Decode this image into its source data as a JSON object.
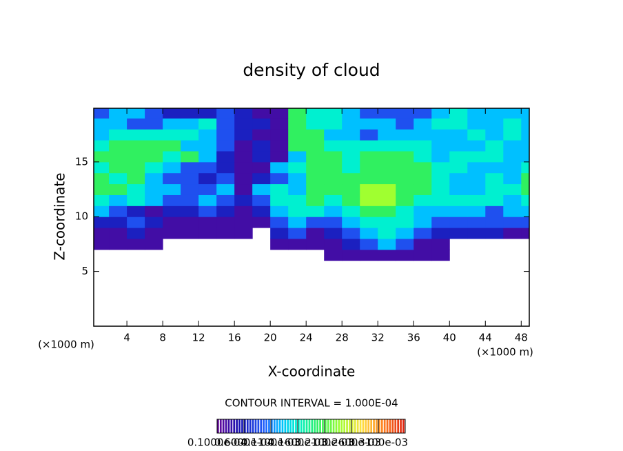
{
  "chart_data": {
    "type": "heatmap",
    "title": "density of cloud",
    "x_label": "X-coordinate",
    "y_label": "Z-coordinate",
    "x_unit": "(×1000 m)",
    "y_unit": "(×1000 m)",
    "annotation": "CONTOUR INTERVAL = 1.000E-04",
    "xlim": [
      0.3,
      48.9
    ],
    "ylim": [
      0,
      19.9
    ],
    "xticks": [
      4,
      8,
      12,
      16,
      20,
      24,
      28,
      32,
      36,
      40,
      44,
      48
    ],
    "yticks": [
      5,
      10,
      15
    ],
    "x": [
      1,
      3,
      5,
      7,
      9,
      11,
      13,
      15,
      17,
      19,
      21,
      23,
      25,
      27,
      29,
      31,
      33,
      35,
      37,
      39,
      41,
      43,
      45,
      47,
      49
    ],
    "z": [
      6.5,
      7.5,
      8.5,
      9.5,
      10.5,
      11.5,
      12.5,
      13.5,
      14.5,
      15.5,
      16.5,
      17.5,
      18.5,
      19.5
    ],
    "values": [
      [
        null,
        null,
        null,
        null,
        null,
        null,
        null,
        null,
        null,
        null,
        null,
        null,
        null,
        3e-05,
        3e-05,
        3e-05,
        3e-05,
        3e-05,
        3e-05,
        3e-05,
        null,
        null,
        null,
        null,
        null
      ],
      [
        3e-05,
        3e-05,
        3e-05,
        3e-05,
        null,
        null,
        null,
        null,
        null,
        null,
        3e-05,
        3e-05,
        3e-05,
        3e-05,
        6e-05,
        9e-05,
        0.00013,
        9e-05,
        3e-05,
        3e-05,
        null,
        null,
        null,
        null,
        null
      ],
      [
        3e-05,
        3e-05,
        6e-05,
        3e-05,
        3e-05,
        3e-05,
        3e-05,
        3e-05,
        3e-05,
        null,
        6e-05,
        9e-05,
        3e-05,
        6e-05,
        9e-05,
        0.00013,
        0.00016,
        0.00013,
        9e-05,
        6e-05,
        6e-05,
        6e-05,
        6e-05,
        3e-05,
        3e-05
      ],
      [
        6e-05,
        6e-05,
        9e-05,
        6e-05,
        3e-05,
        3e-05,
        3e-05,
        3e-05,
        3e-05,
        3e-05,
        9e-05,
        0.00013,
        9e-05,
        9e-05,
        0.00013,
        0.00016,
        0.00016,
        0.00016,
        0.00013,
        9e-05,
        9e-05,
        9e-05,
        9e-05,
        9e-05,
        9e-05
      ],
      [
        0.00013,
        9e-05,
        6e-05,
        3e-05,
        6e-05,
        6e-05,
        9e-05,
        6e-05,
        3e-05,
        6e-05,
        0.00013,
        0.00016,
        0.00016,
        0.00013,
        0.00016,
        0.0002,
        0.0002,
        0.00016,
        0.00013,
        0.00013,
        0.00013,
        0.00013,
        9e-05,
        0.00013,
        0.00013
      ],
      [
        0.00016,
        0.00013,
        0.00016,
        0.00013,
        9e-05,
        9e-05,
        0.00013,
        9e-05,
        6e-05,
        9e-05,
        0.00016,
        0.00016,
        0.0002,
        0.00016,
        0.0002,
        0.00024,
        0.00024,
        0.0002,
        0.00016,
        0.00016,
        0.00016,
        0.00016,
        0.00016,
        0.00013,
        0.00016
      ],
      [
        0.0002,
        0.0002,
        0.00016,
        0.00013,
        0.00013,
        9e-05,
        9e-05,
        0.00013,
        3e-05,
        0.00013,
        0.00016,
        0.00013,
        0.0002,
        0.0002,
        0.0002,
        0.00024,
        0.00024,
        0.0002,
        0.0002,
        0.00016,
        0.00013,
        0.00013,
        0.00016,
        0.00016,
        0.0002
      ],
      [
        0.0002,
        0.00016,
        0.0002,
        0.00013,
        9e-05,
        9e-05,
        6e-05,
        9e-05,
        3e-05,
        6e-05,
        9e-05,
        0.00013,
        0.0002,
        0.0002,
        0.0002,
        0.0002,
        0.0002,
        0.0002,
        0.0002,
        0.00016,
        0.00013,
        0.00013,
        0.00016,
        0.00013,
        0.0002
      ],
      [
        0.00016,
        0.0002,
        0.0002,
        0.00016,
        0.00013,
        9e-05,
        9e-05,
        6e-05,
        3e-05,
        3e-05,
        0.00013,
        0.00016,
        0.0002,
        0.0002,
        0.00016,
        0.0002,
        0.0002,
        0.0002,
        0.0002,
        0.00016,
        0.00016,
        0.00013,
        0.00013,
        0.00013,
        0.00016
      ],
      [
        0.0002,
        0.0002,
        0.0002,
        0.0002,
        0.00016,
        0.0002,
        0.00013,
        6e-05,
        3e-05,
        6e-05,
        3e-05,
        0.00013,
        0.0002,
        0.0002,
        0.00016,
        0.0002,
        0.0002,
        0.0002,
        0.00016,
        0.00013,
        0.00016,
        0.00016,
        0.00016,
        0.00013,
        0.00013
      ],
      [
        0.00016,
        0.0002,
        0.0002,
        0.0002,
        0.0002,
        0.00013,
        0.00013,
        9e-05,
        3e-05,
        6e-05,
        3e-05,
        0.0002,
        0.0002,
        0.00016,
        0.00016,
        0.00016,
        0.00016,
        0.00016,
        0.00016,
        0.00013,
        0.00013,
        0.00013,
        0.00016,
        0.00013,
        0.00013
      ],
      [
        0.00013,
        0.00016,
        0.00016,
        0.00016,
        0.00016,
        0.00016,
        0.00013,
        9e-05,
        6e-05,
        3e-05,
        3e-05,
        0.0002,
        0.0002,
        0.00013,
        0.00013,
        9e-05,
        0.00013,
        0.00013,
        0.00013,
        0.00013,
        0.00013,
        0.00016,
        0.00013,
        0.00016,
        0.00013
      ],
      [
        0.00013,
        0.00013,
        9e-05,
        9e-05,
        0.00013,
        0.00013,
        0.00016,
        9e-05,
        6e-05,
        6e-05,
        3e-05,
        0.0002,
        0.00016,
        0.00016,
        0.00013,
        0.00013,
        0.00013,
        9e-05,
        0.00013,
        0.00016,
        0.00016,
        0.00013,
        0.00013,
        0.00016,
        0.00013
      ],
      [
        9e-05,
        0.00013,
        0.00013,
        9e-05,
        6e-05,
        6e-05,
        6e-05,
        9e-05,
        6e-05,
        3e-05,
        3e-05,
        0.0002,
        0.00016,
        0.00016,
        0.00013,
        9e-05,
        9e-05,
        9e-05,
        9e-05,
        0.00013,
        0.00016,
        0.00013,
        0.00013,
        0.00013,
        0.00013
      ]
    ],
    "colormap": [
      {
        "value": 1e-05,
        "color": "#6a0a9a"
      },
      {
        "value": 5e-05,
        "color": "#1a10b0"
      },
      {
        "value": 0.0001,
        "color": "#2060ff"
      },
      {
        "value": 0.00013,
        "color": "#00c0ff"
      },
      {
        "value": 0.00016,
        "color": "#00f0d0"
      },
      {
        "value": 0.0002,
        "color": "#30f060"
      },
      {
        "value": 0.00024,
        "color": "#a0ff30"
      },
      {
        "value": 0.00028,
        "color": "#ffe040"
      },
      {
        "value": 0.00032,
        "color": "#ff8020"
      },
      {
        "value": 0.00036,
        "color": "#e02010"
      }
    ],
    "colorbar_lim": [
      1e-05,
      0.00036
    ],
    "colorbar_ticks": [
      {
        "value": 1e-05,
        "label": "0.1000e-04"
      },
      {
        "value": 6e-05,
        "label": "0.6000e-04"
      },
      {
        "value": 0.00011,
        "label": "0.1100e-03"
      },
      {
        "value": 0.00016,
        "label": "0.1600e-03"
      },
      {
        "value": 0.00021,
        "label": "0.2100e-03"
      },
      {
        "value": 0.00026,
        "label": "0.2600e-03"
      },
      {
        "value": 0.00031,
        "label": "0.3100e-03"
      }
    ]
  }
}
